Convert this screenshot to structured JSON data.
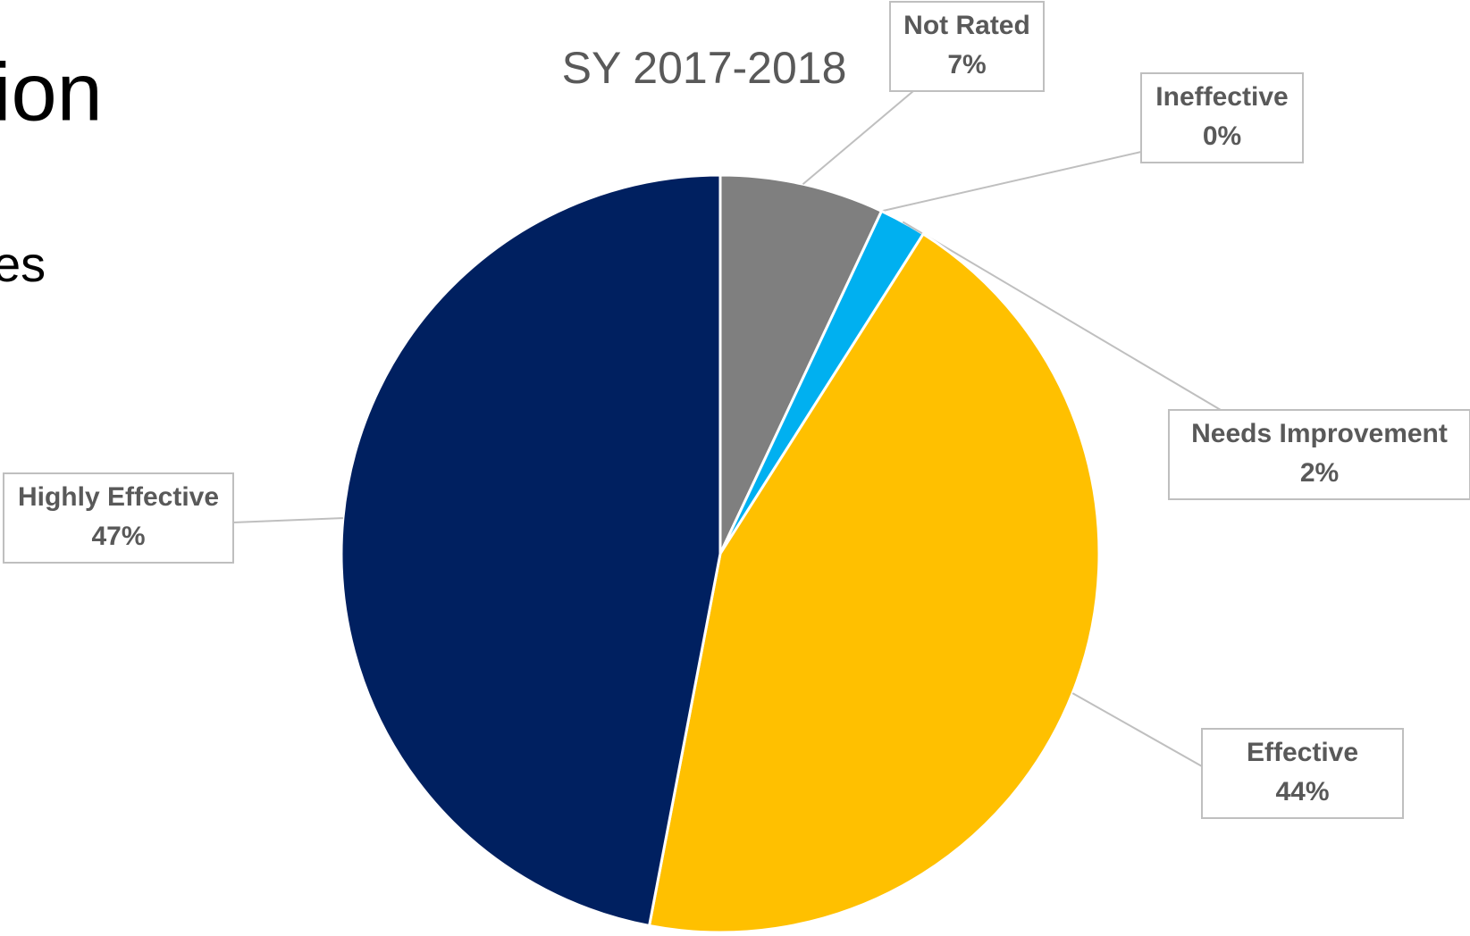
{
  "slide": {
    "title": "ion",
    "bullet": "es"
  },
  "chart_data": {
    "type": "pie",
    "title": "SY 2017-2018",
    "categories": [
      "Not Rated",
      "Ineffective",
      "Needs Improvement",
      "Effective",
      "Highly Effective"
    ],
    "values": [
      7,
      0,
      2,
      44,
      47
    ],
    "value_labels": [
      "7%",
      "0%",
      "2%",
      "44%",
      "47%"
    ],
    "colors": [
      "#7f7f7f",
      "#ed7d31",
      "#00b0f0",
      "#ffc000",
      "#002060"
    ]
  }
}
